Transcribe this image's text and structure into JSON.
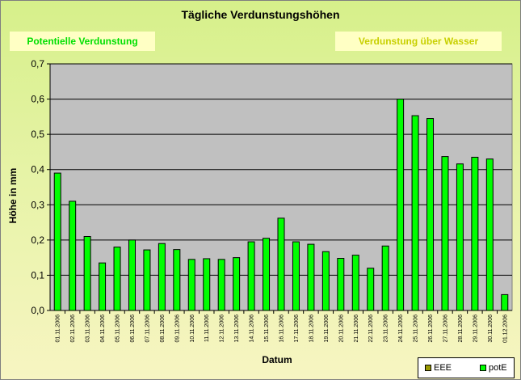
{
  "chart_data": {
    "type": "bar",
    "title": "Tägliche Verdunstungshöhen",
    "xlabel": "Datum",
    "ylabel": "Höhe in mm",
    "ylim": [
      0,
      0.7
    ],
    "yticks": [
      "0,0",
      "0,1",
      "0,2",
      "0,3",
      "0,4",
      "0,5",
      "0,6",
      "0,7"
    ],
    "grid": true,
    "legend_position": "bottom-right",
    "categories": [
      "01.11.2006",
      "02.11.2006",
      "03.11.2006",
      "04.11.2006",
      "05.11.2006",
      "06.11.2006",
      "07.11.2006",
      "08.11.2006",
      "09.11.2006",
      "10.11.2006",
      "11.11.2006",
      "12.11.2006",
      "13.11.2006",
      "14.11.2006",
      "15.11.2006",
      "16.11.2006",
      "17.11.2006",
      "18.11.2006",
      "19.11.2006",
      "20.11.2006",
      "21.11.2006",
      "22.11.2006",
      "23.11.2006",
      "24.11.2006",
      "25.11.2006",
      "26.11.2006",
      "27.11.2006",
      "28.11.2006",
      "29.11.2006",
      "30.11.2006",
      "01.12.2006"
    ],
    "series": [
      {
        "name": "EEE",
        "color": "#999900",
        "values": [
          null,
          null,
          null,
          null,
          null,
          null,
          null,
          null,
          null,
          null,
          null,
          null,
          null,
          null,
          null,
          null,
          null,
          null,
          null,
          null,
          null,
          null,
          null,
          null,
          null,
          null,
          null,
          null,
          null,
          null,
          null
        ]
      },
      {
        "name": "potE",
        "color": "#00ff00",
        "values": [
          0.39,
          0.31,
          0.21,
          0.135,
          0.18,
          0.2,
          0.172,
          0.19,
          0.173,
          0.145,
          0.147,
          0.145,
          0.15,
          0.195,
          0.205,
          0.262,
          0.195,
          0.188,
          0.167,
          0.148,
          0.157,
          0.12,
          0.183,
          0.6,
          0.553,
          0.545,
          0.437,
          0.416,
          0.435,
          0.43,
          0.045
        ]
      }
    ]
  },
  "annotations": {
    "left": "Potentielle Verdunstung",
    "right": "Verdunstung über Wasser"
  },
  "colors": {
    "plot_background": "#c0c0c0",
    "gridline": "#000000",
    "left_label_color": "#00e000",
    "right_label_color": "#c8d000"
  }
}
